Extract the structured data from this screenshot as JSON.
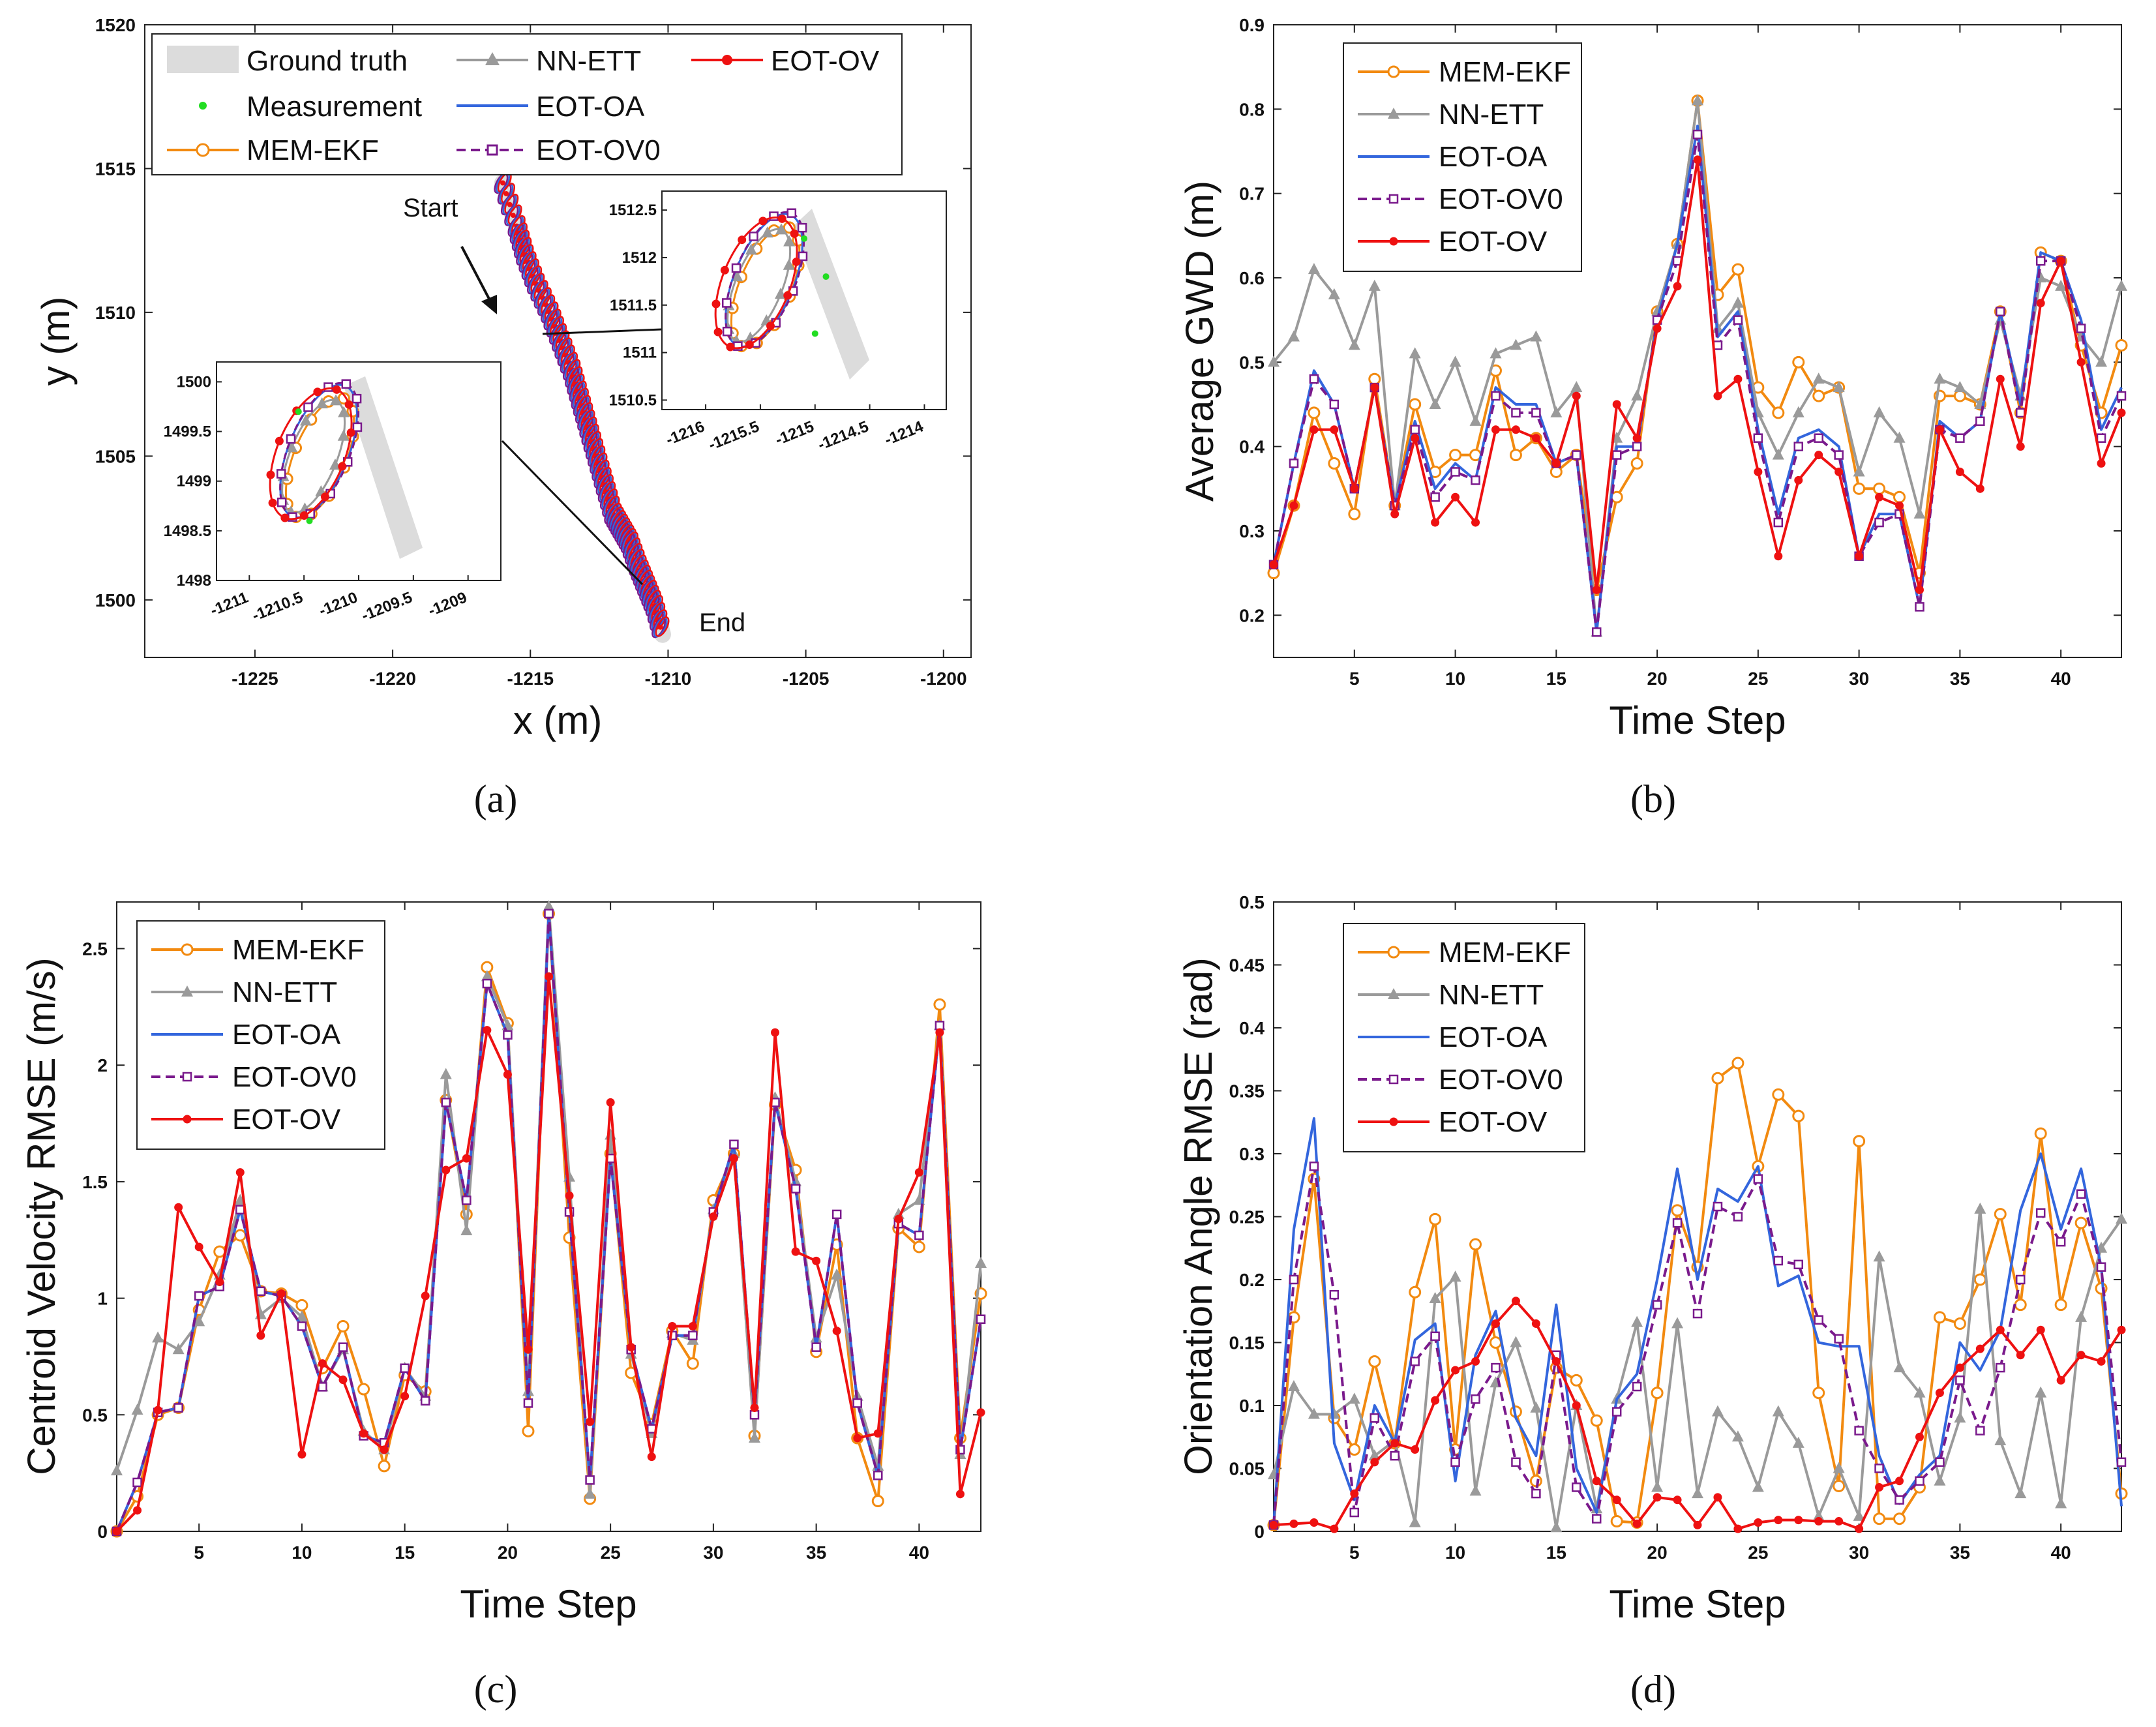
{
  "colors": {
    "MEM-EKF": "#f28a10",
    "NN-ETT": "#9a9a9a",
    "EOT-OA": "#3366dd",
    "EOT-OV0": "#7a1a8c",
    "EOT-OV": "#ee1111",
    "ground": "#dcdcdc",
    "measurement": "#22dd22"
  },
  "captions": [
    "(a)",
    "(b)",
    "(c)",
    "(d)"
  ],
  "chart_data": [
    {
      "id": "a",
      "type": "scatter",
      "title": "",
      "xlabel": "x (m)",
      "ylabel": "y (m)",
      "xlim": [
        -1229,
        -1199
      ],
      "ylim": [
        1498,
        1520
      ],
      "xticks": [
        -1225,
        -1220,
        -1215,
        -1210,
        -1205,
        -1200
      ],
      "yticks": [
        1500,
        1505,
        1510,
        1515,
        1520
      ],
      "legend": [
        "Ground truth",
        "Measurement",
        "MEM-EKF",
        "NN-ETT",
        "EOT-OA",
        "EOT-OV0",
        "EOT-OV"
      ],
      "annotations": {
        "start": "Start",
        "end": "End"
      },
      "trajectory": {
        "x": [
          -1216.0,
          -1215.5,
          -1215.2,
          -1214.8,
          -1214.3,
          -1213.9,
          -1213.5,
          -1213.2,
          -1212.9,
          -1212.6,
          -1212.3,
          -1212.0,
          -1211.7,
          -1211.4,
          -1211.1,
          -1210.8,
          -1210.5,
          -1210.2
        ],
        "y": [
          1514.5,
          1513.0,
          1512.0,
          1511.0,
          1510.0,
          1509.0,
          1508.0,
          1507.0,
          1506.0,
          1505.0,
          1504.0,
          1503.0,
          1502.5,
          1502.0,
          1501.2,
          1500.5,
          1499.8,
          1498.8
        ]
      },
      "inset_right": {
        "xticks": [
          "-1216",
          "-1215.5",
          "-1215",
          "-1214.5",
          "-1214"
        ],
        "yticks": [
          "1510.5",
          "1511",
          "1511.5",
          "1512",
          "1512.5"
        ],
        "xlim": [
          -1216.4,
          -1213.8
        ],
        "ylim": [
          1510.4,
          1512.7
        ],
        "measurements": {
          "x": [
            -1215.1,
            -1214.9,
            -1215.0
          ],
          "y": [
            1512.2,
            1511.8,
            1511.2
          ]
        }
      },
      "inset_left": {
        "xticks": [
          "-1211",
          "-1210.5",
          "-1210",
          "-1209.5",
          "-1209"
        ],
        "yticks": [
          "1498",
          "1498.5",
          "1499",
          "1499.5",
          "1500"
        ],
        "xlim": [
          -1211.3,
          -1208.7
        ],
        "ylim": [
          1498.0,
          1500.2
        ],
        "measurements": {
          "x": [
            -1210.55,
            -1210.45
          ],
          "y": [
            1499.7,
            1498.6
          ]
        }
      }
    },
    {
      "id": "b",
      "type": "line",
      "xlabel": "Time Step",
      "ylabel": "Average GWD (m)",
      "xlim": [
        1,
        43
      ],
      "ylim": [
        0.15,
        0.9
      ],
      "xticks": [
        5,
        10,
        15,
        20,
        25,
        30,
        35,
        40
      ],
      "yticks": [
        0.2,
        0.3,
        0.4,
        0.5,
        0.6,
        0.7,
        0.8,
        0.9
      ],
      "legend_pos": "top-left",
      "series": [
        {
          "name": "MEM-EKF",
          "values": [
            0.25,
            0.33,
            0.44,
            0.38,
            0.32,
            0.48,
            0.33,
            0.45,
            0.37,
            0.39,
            0.39,
            0.49,
            0.39,
            0.41,
            0.37,
            0.39,
            0.23,
            0.34,
            0.38,
            0.56,
            0.64,
            0.81,
            0.58,
            0.61,
            0.47,
            0.44,
            0.5,
            0.46,
            0.47,
            0.35,
            0.35,
            0.34,
            0.25,
            0.46,
            0.46,
            0.45,
            0.56,
            0.44,
            0.63,
            0.62,
            0.52,
            0.44,
            0.52
          ]
        },
        {
          "name": "NN-ETT",
          "values": [
            0.5,
            0.53,
            0.61,
            0.58,
            0.52,
            0.59,
            0.33,
            0.51,
            0.45,
            0.5,
            0.43,
            0.51,
            0.52,
            0.53,
            0.44,
            0.47,
            0.18,
            0.41,
            0.46,
            0.56,
            0.64,
            0.81,
            0.54,
            0.57,
            0.44,
            0.39,
            0.44,
            0.48,
            0.47,
            0.37,
            0.44,
            0.41,
            0.32,
            0.48,
            0.47,
            0.45,
            0.55,
            0.46,
            0.6,
            0.59,
            0.53,
            0.5,
            0.59
          ]
        },
        {
          "name": "EOT-OA",
          "values": [
            0.26,
            0.38,
            0.49,
            0.45,
            0.35,
            0.47,
            0.33,
            0.43,
            0.35,
            0.38,
            0.36,
            0.47,
            0.45,
            0.45,
            0.38,
            0.39,
            0.18,
            0.4,
            0.4,
            0.55,
            0.64,
            0.78,
            0.53,
            0.56,
            0.42,
            0.32,
            0.41,
            0.42,
            0.4,
            0.27,
            0.32,
            0.32,
            0.21,
            0.43,
            0.41,
            0.43,
            0.56,
            0.45,
            0.63,
            0.62,
            0.55,
            0.42,
            0.47
          ]
        },
        {
          "name": "EOT-OV0",
          "values": [
            0.26,
            0.38,
            0.48,
            0.45,
            0.35,
            0.47,
            0.33,
            0.42,
            0.34,
            0.37,
            0.36,
            0.46,
            0.44,
            0.44,
            0.38,
            0.39,
            0.18,
            0.39,
            0.4,
            0.55,
            0.62,
            0.77,
            0.52,
            0.55,
            0.41,
            0.31,
            0.4,
            0.41,
            0.39,
            0.27,
            0.31,
            0.32,
            0.21,
            0.42,
            0.41,
            0.43,
            0.56,
            0.44,
            0.62,
            0.62,
            0.54,
            0.41,
            0.46
          ]
        },
        {
          "name": "EOT-OV",
          "values": [
            0.26,
            0.33,
            0.42,
            0.42,
            0.35,
            0.47,
            0.32,
            0.41,
            0.31,
            0.34,
            0.31,
            0.42,
            0.42,
            0.41,
            0.38,
            0.46,
            0.23,
            0.45,
            0.41,
            0.54,
            0.59,
            0.74,
            0.46,
            0.48,
            0.37,
            0.27,
            0.36,
            0.39,
            0.37,
            0.27,
            0.34,
            0.33,
            0.23,
            0.42,
            0.37,
            0.35,
            0.48,
            0.4,
            0.57,
            0.62,
            0.5,
            0.38,
            0.44
          ]
        }
      ]
    },
    {
      "id": "c",
      "type": "line",
      "xlabel": "Time Step",
      "ylabel": "Centroid Velocity RMSE (m/s)",
      "xlim": [
        1,
        43
      ],
      "ylim": [
        0,
        2.7
      ],
      "xticks": [
        5,
        10,
        15,
        20,
        25,
        30,
        35,
        40
      ],
      "yticks": [
        0,
        0.5,
        1,
        1.5,
        2,
        2.5
      ],
      "yticklabels": [
        "0",
        "0.5",
        "1",
        "1.5",
        "2",
        "2.5"
      ],
      "legend_pos": "top-left",
      "series": [
        {
          "name": "MEM-EKF",
          "values": [
            0.0,
            0.15,
            0.5,
            0.53,
            0.95,
            1.2,
            1.27,
            1.03,
            1.02,
            0.97,
            0.7,
            0.88,
            0.61,
            0.28,
            0.67,
            0.6,
            1.85,
            1.36,
            2.42,
            2.18,
            0.43,
            2.65,
            1.26,
            0.14,
            1.62,
            0.68,
            0.46,
            0.86,
            0.72,
            1.42,
            1.62,
            0.41,
            1.83,
            1.55,
            0.77,
            1.23,
            0.4,
            0.13,
            1.3,
            1.22,
            2.26,
            0.4,
            1.02
          ]
        },
        {
          "name": "NN-ETT",
          "values": [
            0.26,
            0.52,
            0.83,
            0.78,
            0.9,
            1.1,
            1.42,
            0.93,
            1.0,
            0.92,
            0.62,
            0.78,
            0.43,
            0.35,
            0.7,
            0.58,
            1.96,
            1.29,
            2.38,
            2.17,
            0.6,
            2.68,
            1.52,
            0.16,
            1.7,
            0.76,
            0.42,
            0.85,
            0.82,
            1.38,
            1.62,
            0.4,
            1.86,
            1.5,
            0.83,
            1.1,
            0.58,
            0.28,
            1.36,
            1.42,
            2.17,
            0.33,
            1.15
          ]
        },
        {
          "name": "EOT-OA",
          "values": [
            0.0,
            0.21,
            0.51,
            0.53,
            1.01,
            1.05,
            1.38,
            1.03,
            1.01,
            0.88,
            0.62,
            0.79,
            0.41,
            0.38,
            0.7,
            0.56,
            1.84,
            1.42,
            2.35,
            2.13,
            0.55,
            2.65,
            1.37,
            0.22,
            1.6,
            0.78,
            0.44,
            0.84,
            0.84,
            1.37,
            1.66,
            0.5,
            1.84,
            1.47,
            0.79,
            1.36,
            0.55,
            0.24,
            1.32,
            1.27,
            2.17,
            0.35,
            0.91
          ]
        },
        {
          "name": "EOT-OV0",
          "values": [
            0.0,
            0.21,
            0.51,
            0.53,
            1.01,
            1.05,
            1.38,
            1.03,
            1.01,
            0.88,
            0.62,
            0.79,
            0.41,
            0.38,
            0.7,
            0.56,
            1.84,
            1.42,
            2.35,
            2.13,
            0.55,
            2.65,
            1.37,
            0.22,
            1.6,
            0.78,
            0.44,
            0.84,
            0.84,
            1.37,
            1.66,
            0.5,
            1.84,
            1.47,
            0.79,
            1.36,
            0.55,
            0.24,
            1.32,
            1.27,
            2.17,
            0.35,
            0.91
          ]
        },
        {
          "name": "EOT-OV",
          "values": [
            0.0,
            0.09,
            0.52,
            1.39,
            1.22,
            1.07,
            1.54,
            0.84,
            1.02,
            0.33,
            0.72,
            0.65,
            0.42,
            0.35,
            0.58,
            1.01,
            1.55,
            1.6,
            2.15,
            1.96,
            0.78,
            2.38,
            1.44,
            0.47,
            1.84,
            0.79,
            0.32,
            0.88,
            0.88,
            1.35,
            1.6,
            0.53,
            2.14,
            1.2,
            1.16,
            0.86,
            0.4,
            0.42,
            1.34,
            1.54,
            2.14,
            0.16,
            0.51
          ]
        }
      ]
    },
    {
      "id": "d",
      "type": "line",
      "xlabel": "Time Step",
      "ylabel": "Orientation Angle RMSE (rad)",
      "xlim": [
        1,
        43
      ],
      "ylim": [
        0,
        0.5
      ],
      "xticks": [
        5,
        10,
        15,
        20,
        25,
        30,
        35,
        40
      ],
      "yticks": [
        0,
        0.05,
        0.1,
        0.15,
        0.2,
        0.25,
        0.3,
        0.35,
        0.4,
        0.45,
        0.5
      ],
      "yticklabels": [
        "0",
        "0.05",
        "0.1",
        "0.15",
        "0.2",
        "0.25",
        "0.3",
        "0.35",
        "0.4",
        "0.45",
        "0.5"
      ],
      "legend_pos": "top-left",
      "series": [
        {
          "name": "MEM-EKF",
          "values": [
            0.005,
            0.17,
            0.28,
            0.09,
            0.065,
            0.135,
            0.07,
            0.19,
            0.248,
            0.065,
            0.228,
            0.15,
            0.095,
            0.04,
            0.13,
            0.12,
            0.088,
            0.008,
            0.007,
            0.11,
            0.255,
            0.21,
            0.36,
            0.372,
            0.29,
            0.347,
            0.33,
            0.11,
            0.036,
            0.31,
            0.01,
            0.01,
            0.035,
            0.17,
            0.165,
            0.2,
            0.252,
            0.18,
            0.316,
            0.18,
            0.245,
            0.193,
            0.03
          ]
        },
        {
          "name": "NN-ETT",
          "values": [
            0.045,
            0.115,
            0.093,
            0.093,
            0.105,
            0.06,
            0.072,
            0.007,
            0.185,
            0.202,
            0.032,
            0.118,
            0.15,
            0.098,
            0.003,
            0.1,
            0.018,
            0.105,
            0.166,
            0.035,
            0.165,
            0.03,
            0.095,
            0.075,
            0.035,
            0.095,
            0.07,
            0.012,
            0.05,
            0.012,
            0.218,
            0.13,
            0.11,
            0.04,
            0.09,
            0.256,
            0.072,
            0.03,
            0.11,
            0.022,
            0.17,
            0.225,
            0.248
          ]
        },
        {
          "name": "EOT-OA",
          "values": [
            0.005,
            0.24,
            0.328,
            0.07,
            0.025,
            0.1,
            0.07,
            0.152,
            0.165,
            0.04,
            0.14,
            0.175,
            0.09,
            0.06,
            0.18,
            0.05,
            0.015,
            0.105,
            0.125,
            0.2,
            0.288,
            0.2,
            0.272,
            0.262,
            0.29,
            0.195,
            0.203,
            0.15,
            0.147,
            0.147,
            0.06,
            0.022,
            0.045,
            0.06,
            0.15,
            0.128,
            0.16,
            0.255,
            0.3,
            0.24,
            0.288,
            0.21,
            0.02
          ]
        },
        {
          "name": "EOT-OV0",
          "values": [
            0.005,
            0.2,
            0.29,
            0.188,
            0.015,
            0.09,
            0.06,
            0.135,
            0.155,
            0.055,
            0.105,
            0.13,
            0.055,
            0.03,
            0.14,
            0.035,
            0.01,
            0.095,
            0.115,
            0.18,
            0.245,
            0.173,
            0.258,
            0.25,
            0.28,
            0.215,
            0.212,
            0.168,
            0.153,
            0.08,
            0.05,
            0.025,
            0.04,
            0.055,
            0.12,
            0.08,
            0.13,
            0.2,
            0.253,
            0.23,
            0.268,
            0.21,
            0.055
          ]
        },
        {
          "name": "EOT-OV",
          "values": [
            0.005,
            0.006,
            0.007,
            0.002,
            0.03,
            0.055,
            0.07,
            0.065,
            0.104,
            0.128,
            0.135,
            0.165,
            0.183,
            0.165,
            0.135,
            0.1,
            0.04,
            0.025,
            0.006,
            0.027,
            0.025,
            0.005,
            0.027,
            0.002,
            0.007,
            0.009,
            0.009,
            0.008,
            0.008,
            0.002,
            0.035,
            0.04,
            0.075,
            0.11,
            0.13,
            0.145,
            0.16,
            0.14,
            0.16,
            0.12,
            0.14,
            0.135,
            0.16
          ]
        }
      ]
    }
  ]
}
